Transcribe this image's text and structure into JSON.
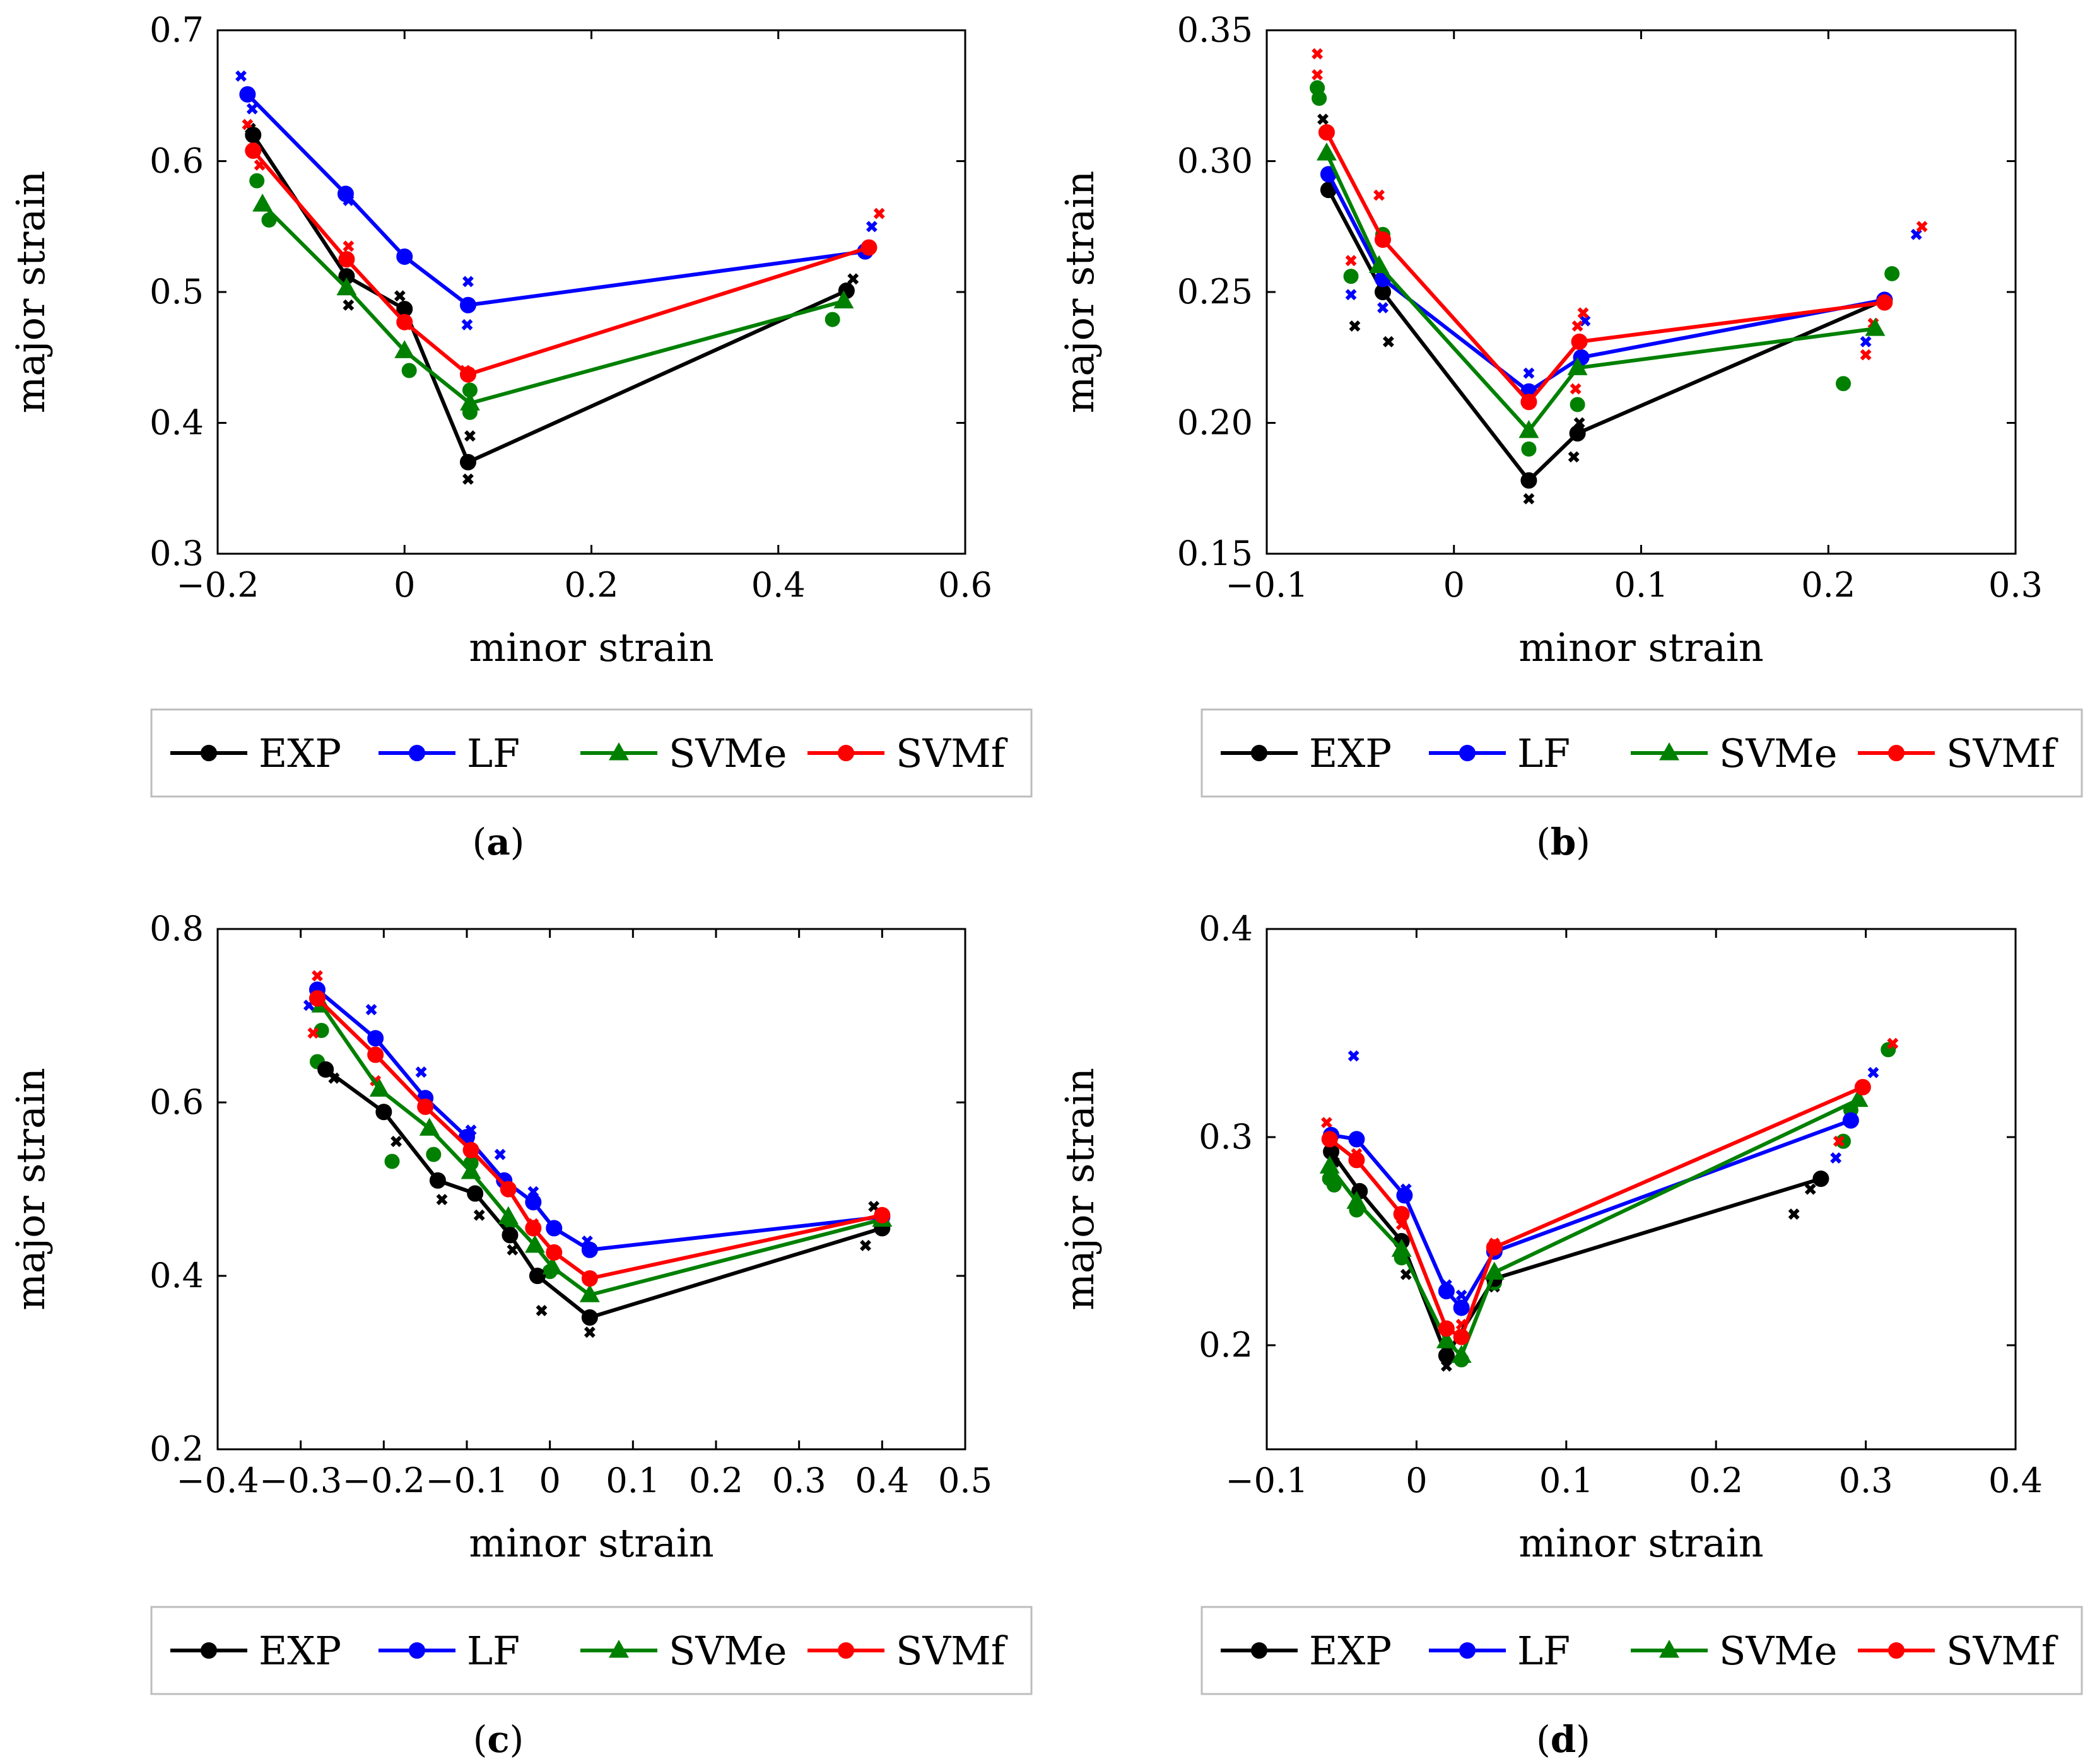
{
  "legend_entries": [
    {
      "name": "EXP",
      "color": "#000000",
      "marker": "circle"
    },
    {
      "name": "LF",
      "color": "#0000ff",
      "marker": "circle"
    },
    {
      "name": "SVMe",
      "color": "#008000",
      "marker": "triangle"
    },
    {
      "name": "SVMf",
      "color": "#ff0000",
      "marker": "circle"
    }
  ],
  "chart_data": [
    {
      "type": "line",
      "caption": "(a)",
      "caption_letter": "a",
      "xlabel": "minor strain",
      "ylabel": "major strain",
      "xlim": [
        -0.2,
        0.6
      ],
      "ylim": [
        0.3,
        0.7
      ],
      "xticks": [
        -0.2,
        0,
        0.2,
        0.4,
        0.6
      ],
      "xtick_labels": [
        "−0.2",
        "0",
        "0.2",
        "0.4",
        "0.6"
      ],
      "yticks": [
        0.3,
        0.4,
        0.5,
        0.6,
        0.7
      ],
      "ytick_labels": [
        "0.3",
        "0.4",
        "0.5",
        "0.6",
        "0.7"
      ],
      "legend_position": "below",
      "series": [
        {
          "name": "EXP",
          "color": "#000000",
          "marker": "circle",
          "x": [
            -0.162,
            -0.062,
            0.0,
            0.068,
            0.473
          ],
          "y": [
            0.62,
            0.512,
            0.487,
            0.37,
            0.501
          ],
          "scatter_marker": "cross",
          "scatter": [
            [
              -0.165,
              0.625
            ],
            [
              -0.06,
              0.49
            ],
            [
              -0.005,
              0.497
            ],
            [
              0.068,
              0.357
            ],
            [
              0.07,
              0.39
            ],
            [
              0.48,
              0.51
            ]
          ]
        },
        {
          "name": "LF",
          "color": "#0000ff",
          "marker": "circle",
          "x": [
            -0.168,
            -0.063,
            0.0,
            0.068,
            0.493
          ],
          "y": [
            0.651,
            0.575,
            0.527,
            0.49,
            0.531
          ],
          "scatter_marker": "cross",
          "scatter": [
            [
              -0.175,
              0.665
            ],
            [
              -0.163,
              0.64
            ],
            [
              -0.06,
              0.57
            ],
            [
              0.068,
              0.508
            ],
            [
              0.067,
              0.475
            ],
            [
              0.5,
              0.55
            ]
          ]
        },
        {
          "name": "SVMe",
          "color": "#008000",
          "marker": "triangle",
          "x": [
            -0.152,
            -0.062,
            0.0,
            0.07,
            0.47
          ],
          "y": [
            0.567,
            0.503,
            0.455,
            0.415,
            0.493
          ],
          "scatter_marker": "circle",
          "scatter": [
            [
              -0.158,
              0.585
            ],
            [
              -0.145,
              0.555
            ],
            [
              0.005,
              0.44
            ],
            [
              0.07,
              0.425
            ],
            [
              0.07,
              0.408
            ],
            [
              0.458,
              0.479
            ]
          ]
        },
        {
          "name": "SVMf",
          "color": "#ff0000",
          "marker": "circle",
          "x": [
            -0.162,
            -0.062,
            0.0,
            0.068,
            0.497
          ],
          "y": [
            0.608,
            0.525,
            0.477,
            0.437,
            0.534
          ],
          "scatter_marker": "cross",
          "scatter": [
            [
              -0.168,
              0.628
            ],
            [
              -0.155,
              0.597
            ],
            [
              -0.06,
              0.535
            ],
            [
              0.002,
              0.475
            ],
            [
              0.065,
              0.44
            ],
            [
              0.508,
              0.56
            ]
          ]
        }
      ]
    },
    {
      "type": "line",
      "caption": "(b)",
      "caption_letter": "b",
      "xlabel": "minor strain",
      "ylabel": "major strain",
      "xlim": [
        -0.1,
        0.3
      ],
      "ylim": [
        0.15,
        0.35
      ],
      "xticks": [
        -0.1,
        0,
        0.1,
        0.2,
        0.3
      ],
      "xtick_labels": [
        "−0.1",
        "0",
        "0.1",
        "0.2",
        "0.3"
      ],
      "yticks": [
        0.15,
        0.2,
        0.25,
        0.3,
        0.35
      ],
      "ytick_labels": [
        "0.15",
        "0.20",
        "0.25",
        "0.30",
        "0.35"
      ],
      "legend_position": "below",
      "series": [
        {
          "name": "EXP",
          "color": "#000000",
          "marker": "circle",
          "x": [
            -0.067,
            -0.038,
            0.04,
            0.066,
            0.23
          ],
          "y": [
            0.289,
            0.25,
            0.178,
            0.196,
            0.247
          ],
          "scatter_marker": "cross",
          "scatter": [
            [
              -0.07,
              0.316
            ],
            [
              -0.053,
              0.237
            ],
            [
              -0.035,
              0.231
            ],
            [
              0.04,
              0.171
            ],
            [
              0.064,
              0.187
            ],
            [
              0.067,
              0.2
            ]
          ]
        },
        {
          "name": "LF",
          "color": "#0000ff",
          "marker": "circle",
          "x": [
            -0.067,
            -0.038,
            0.04,
            0.068,
            0.23
          ],
          "y": [
            0.295,
            0.255,
            0.212,
            0.225,
            0.247
          ],
          "scatter_marker": "cross",
          "scatter": [
            [
              -0.055,
              0.249
            ],
            [
              -0.038,
              0.244
            ],
            [
              0.04,
              0.219
            ],
            [
              0.07,
              0.239
            ],
            [
              0.22,
              0.231
            ],
            [
              0.247,
              0.272
            ]
          ]
        },
        {
          "name": "SVMe",
          "color": "#008000",
          "marker": "triangle",
          "x": [
            -0.068,
            -0.04,
            0.04,
            0.066,
            0.225
          ],
          "y": [
            0.303,
            0.26,
            0.197,
            0.221,
            0.236
          ],
          "scatter_marker": "circle",
          "scatter": [
            [
              -0.073,
              0.328
            ],
            [
              -0.072,
              0.324
            ],
            [
              -0.055,
              0.256
            ],
            [
              -0.038,
              0.272
            ],
            [
              0.04,
              0.19
            ],
            [
              0.066,
              0.207
            ],
            [
              0.208,
              0.215
            ],
            [
              0.234,
              0.257
            ]
          ]
        },
        {
          "name": "SVMf",
          "color": "#ff0000",
          "marker": "circle",
          "x": [
            -0.068,
            -0.038,
            0.04,
            0.067,
            0.23
          ],
          "y": [
            0.311,
            0.27,
            0.208,
            0.231,
            0.246
          ],
          "scatter_marker": "cross",
          "scatter": [
            [
              -0.073,
              0.341
            ],
            [
              -0.073,
              0.333
            ],
            [
              -0.055,
              0.262
            ],
            [
              -0.04,
              0.287
            ],
            [
              0.065,
              0.213
            ],
            [
              0.066,
              0.237
            ],
            [
              0.069,
              0.242
            ],
            [
              0.22,
              0.226
            ],
            [
              0.224,
              0.238
            ],
            [
              0.25,
              0.275
            ]
          ]
        }
      ]
    },
    {
      "type": "line",
      "caption": "(c)",
      "caption_letter": "c",
      "xlabel": "minor strain",
      "ylabel": "major strain",
      "xlim": [
        -0.4,
        0.5
      ],
      "ylim": [
        0.2,
        0.8
      ],
      "xticks": [
        -0.4,
        -0.3,
        -0.2,
        -0.1,
        0,
        0.1,
        0.2,
        0.3,
        0.4,
        0.5
      ],
      "xtick_labels": [
        "−0.4",
        "−0.3",
        "−0.2",
        "−0.1",
        "0",
        "0.1",
        "0.2",
        "0.3",
        "0.4",
        "0.5"
      ],
      "yticks": [
        0.2,
        0.4,
        0.6,
        0.8
      ],
      "ytick_labels": [
        "0.2",
        "0.4",
        "0.6",
        "0.8"
      ],
      "legend_position": "below",
      "series": [
        {
          "name": "EXP",
          "color": "#000000",
          "marker": "circle",
          "x": [
            -0.27,
            -0.2,
            -0.135,
            -0.09,
            -0.048,
            -0.015,
            0.048,
            0.4
          ],
          "y": [
            0.638,
            0.589,
            0.51,
            0.495,
            0.447,
            0.4,
            0.352,
            0.455
          ],
          "scatter_marker": "cross",
          "scatter": [
            [
              -0.26,
              0.628
            ],
            [
              -0.185,
              0.555
            ],
            [
              -0.13,
              0.488
            ],
            [
              -0.085,
              0.47
            ],
            [
              -0.045,
              0.43
            ],
            [
              -0.01,
              0.36
            ],
            [
              0.048,
              0.335
            ],
            [
              0.38,
              0.435
            ],
            [
              0.39,
              0.48
            ]
          ]
        },
        {
          "name": "LF",
          "color": "#0000ff",
          "marker": "circle",
          "x": [
            -0.28,
            -0.21,
            -0.15,
            -0.1,
            -0.055,
            -0.02,
            0.005,
            0.048,
            0.4
          ],
          "y": [
            0.73,
            0.674,
            0.605,
            0.56,
            0.51,
            0.485,
            0.455,
            0.43,
            0.468
          ],
          "scatter_marker": "cross",
          "scatter": [
            [
              -0.29,
              0.712
            ],
            [
              -0.215,
              0.707
            ],
            [
              -0.155,
              0.635
            ],
            [
              -0.095,
              0.568
            ],
            [
              -0.06,
              0.54
            ],
            [
              -0.02,
              0.497
            ],
            [
              0.045,
              0.44
            ]
          ]
        },
        {
          "name": "SVMe",
          "color": "#008000",
          "marker": "triangle",
          "x": [
            -0.275,
            -0.205,
            -0.145,
            -0.095,
            -0.05,
            -0.018,
            0.003,
            0.048,
            0.4
          ],
          "y": [
            0.712,
            0.615,
            0.57,
            0.52,
            0.468,
            0.435,
            0.41,
            0.378,
            0.465
          ],
          "scatter_marker": "circle",
          "scatter": [
            [
              -0.28,
              0.647
            ],
            [
              -0.275,
              0.683
            ],
            [
              -0.19,
              0.532
            ],
            [
              -0.14,
              0.54
            ],
            [
              -0.095,
              0.53
            ],
            [
              -0.05,
              0.46
            ],
            [
              0.0,
              0.405
            ]
          ]
        },
        {
          "name": "SVMf",
          "color": "#ff0000",
          "marker": "circle",
          "x": [
            -0.28,
            -0.21,
            -0.15,
            -0.095,
            -0.05,
            -0.02,
            0.005,
            0.048,
            0.4
          ],
          "y": [
            0.72,
            0.655,
            0.595,
            0.545,
            0.5,
            0.455,
            0.427,
            0.397,
            0.47
          ],
          "scatter_marker": "cross",
          "scatter": [
            [
              -0.28,
              0.746
            ],
            [
              -0.285,
              0.68
            ],
            [
              -0.21,
              0.625
            ],
            [
              -0.15,
              0.595
            ],
            [
              -0.02,
              0.46
            ]
          ]
        }
      ]
    },
    {
      "type": "line",
      "caption": "(d)",
      "caption_letter": "d",
      "xlabel": "minor strain",
      "ylabel": "major strain",
      "xlim": [
        -0.1,
        0.4
      ],
      "ylim": [
        0.15,
        0.4
      ],
      "xticks": [
        -0.1,
        0,
        0.1,
        0.2,
        0.3,
        0.4
      ],
      "xtick_labels": [
        "−0.1",
        "0",
        "0.1",
        "0.2",
        "0.3",
        "0.4"
      ],
      "yticks": [
        0.2,
        0.3,
        0.4
      ],
      "ytick_labels": [
        "0.2",
        "0.3",
        "0.4"
      ],
      "legend_position": "below",
      "series": [
        {
          "name": "EXP",
          "color": "#000000",
          "marker": "circle",
          "x": [
            -0.057,
            -0.038,
            -0.01,
            0.02,
            0.052,
            0.27
          ],
          "y": [
            0.293,
            0.274,
            0.25,
            0.195,
            0.232,
            0.28
          ],
          "scatter_marker": "cross",
          "scatter": [
            [
              -0.055,
              0.288
            ],
            [
              -0.04,
              0.268
            ],
            [
              -0.007,
              0.234
            ],
            [
              0.02,
              0.19
            ],
            [
              0.052,
              0.228
            ],
            [
              0.252,
              0.263
            ],
            [
              0.263,
              0.275
            ]
          ]
        },
        {
          "name": "LF",
          "color": "#0000ff",
          "marker": "circle",
          "x": [
            -0.057,
            -0.04,
            -0.008,
            0.02,
            0.03,
            0.052,
            0.29
          ],
          "y": [
            0.301,
            0.299,
            0.272,
            0.226,
            0.218,
            0.245,
            0.308
          ],
          "scatter_marker": "cross",
          "scatter": [
            [
              -0.042,
              0.339
            ],
            [
              -0.007,
              0.275
            ],
            [
              0.02,
              0.229
            ],
            [
              0.03,
              0.224
            ],
            [
              0.28,
              0.29
            ],
            [
              0.305,
              0.331
            ]
          ]
        },
        {
          "name": "SVMe",
          "color": "#008000",
          "marker": "triangle",
          "x": [
            -0.058,
            -0.04,
            -0.01,
            0.02,
            0.03,
            0.052,
            0.295
          ],
          "y": [
            0.286,
            0.269,
            0.246,
            0.202,
            0.195,
            0.235,
            0.318
          ],
          "scatter_marker": "circle",
          "scatter": [
            [
              -0.058,
              0.28
            ],
            [
              -0.055,
              0.277
            ],
            [
              -0.04,
              0.265
            ],
            [
              -0.01,
              0.242
            ],
            [
              0.03,
              0.193
            ],
            [
              0.052,
              0.23
            ],
            [
              0.285,
              0.298
            ],
            [
              0.29,
              0.313
            ],
            [
              0.315,
              0.342
            ]
          ]
        },
        {
          "name": "SVMf",
          "color": "#ff0000",
          "marker": "circle",
          "x": [
            -0.058,
            -0.04,
            -0.01,
            0.02,
            0.03,
            0.052,
            0.298
          ],
          "y": [
            0.299,
            0.289,
            0.263,
            0.208,
            0.204,
            0.247,
            0.324
          ],
          "scatter_marker": "cross",
          "scatter": [
            [
              -0.06,
              0.307
            ],
            [
              -0.04,
              0.292
            ],
            [
              -0.01,
              0.258
            ],
            [
              0.03,
              0.21
            ],
            [
              0.052,
              0.249
            ],
            [
              0.282,
              0.298
            ],
            [
              0.318,
              0.345
            ]
          ]
        }
      ]
    }
  ]
}
